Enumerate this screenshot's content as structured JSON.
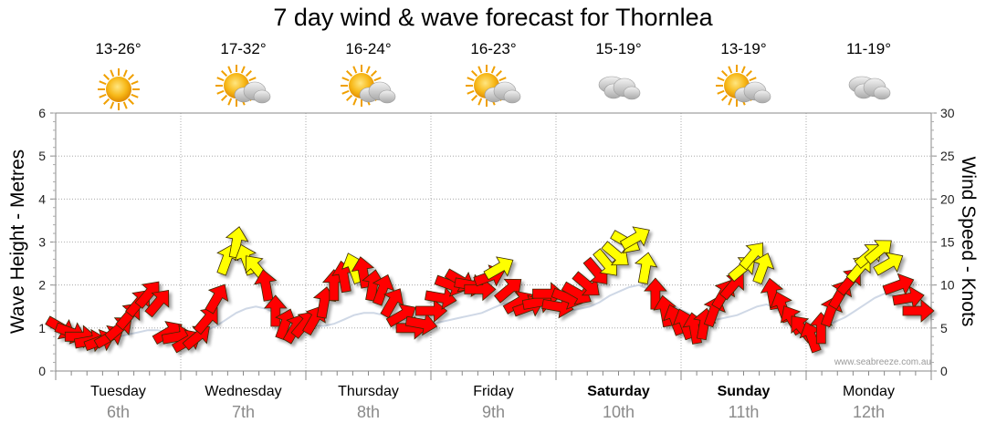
{
  "title": "7 day wind & wave forecast for Thornlea",
  "credit": "www.seabreeze.com.au",
  "days": [
    {
      "name": "Tuesday",
      "date": "6th",
      "temp": "13-26°",
      "icon": "sun-icon",
      "weekend": false
    },
    {
      "name": "Wednesday",
      "date": "7th",
      "temp": "17-32°",
      "icon": "sun-cloud-icon",
      "weekend": false
    },
    {
      "name": "Thursday",
      "date": "8th",
      "temp": "16-24°",
      "icon": "sun-cloud-icon",
      "weekend": false
    },
    {
      "name": "Friday",
      "date": "9th",
      "temp": "16-23°",
      "icon": "sun-cloud-icon",
      "weekend": false
    },
    {
      "name": "Saturday",
      "date": "10th",
      "temp": "15-19°",
      "icon": "cloud-icon",
      "weekend": true
    },
    {
      "name": "Sunday",
      "date": "11th",
      "temp": "13-19°",
      "icon": "sun-cloud-icon",
      "weekend": true
    },
    {
      "name": "Monday",
      "date": "12th",
      "temp": "11-19°",
      "icon": "cloud-icon",
      "weekend": false
    }
  ],
  "chart_data": {
    "type": "line",
    "ylabel_left": "Wave Height - Metres",
    "ylabel_right": "Wind Speed - Knots",
    "ylim_left": [
      0,
      6
    ],
    "ylim_right": [
      0,
      30
    ],
    "yticks_left": [
      "0",
      "1",
      "2",
      "3",
      "4",
      "5",
      "6"
    ],
    "yticks_right": [
      "0",
      "5",
      "10",
      "15",
      "20",
      "25",
      "30"
    ],
    "grid": true,
    "arrow_colors": {
      "light": "#ffff00",
      "strong": "#ff0000"
    },
    "wind_knots": [
      5,
      4.5,
      4,
      3.5,
      3.5,
      4,
      5,
      6.5,
      8,
      9,
      8,
      4.5,
      4,
      3.5,
      4,
      6,
      8.5,
      13,
      15,
      13,
      12,
      10,
      7,
      5.5,
      5,
      5.5,
      6,
      8,
      10,
      11,
      12,
      11.5,
      10,
      9.5,
      8,
      6.5,
      5,
      5.5,
      7,
      8.5,
      10,
      10.5,
      10,
      9.5,
      11,
      12,
      9.5,
      8,
      7.5,
      8,
      9,
      7.5,
      8.5,
      9,
      10,
      11.5,
      12.5,
      13.5,
      15,
      15.5,
      12,
      9,
      7,
      6,
      5.5,
      5,
      5.5,
      7,
      9,
      10,
      12,
      13.5,
      12,
      9,
      7.5,
      6,
      5,
      4,
      5,
      7,
      9,
      10.5,
      12,
      13.5,
      14,
      12.5,
      10,
      8.5,
      7
    ],
    "wind_dir_deg": [
      120,
      110,
      90,
      80,
      70,
      60,
      50,
      40,
      40,
      40,
      40,
      60,
      80,
      60,
      50,
      40,
      30,
      20,
      10,
      -20,
      -40,
      -10,
      0,
      20,
      30,
      40,
      30,
      10,
      0,
      -10,
      -20,
      -10,
      10,
      20,
      30,
      60,
      90,
      100,
      90,
      100,
      110,
      120,
      100,
      90,
      70,
      60,
      50,
      60,
      70,
      80,
      90,
      100,
      110,
      120,
      130,
      140,
      140,
      130,
      120,
      60,
      10,
      0,
      -10,
      -20,
      -20,
      -10,
      10,
      20,
      30,
      40,
      50,
      40,
      20,
      -10,
      -20,
      -30,
      -40,
      -20,
      0,
      20,
      30,
      40,
      40,
      50,
      50,
      60,
      70,
      80,
      90
    ],
    "wave_m": [
      1.0,
      0.95,
      0.9,
      0.85,
      0.8,
      0.8,
      0.8,
      0.85,
      0.9,
      0.95,
      0.95,
      0.9,
      0.85,
      0.85,
      0.9,
      0.95,
      1.05,
      1.2,
      1.35,
      1.45,
      1.5,
      1.45,
      1.35,
      1.25,
      1.15,
      1.1,
      1.05,
      1.05,
      1.1,
      1.2,
      1.3,
      1.35,
      1.35,
      1.3,
      1.25,
      1.2,
      1.15,
      1.1,
      1.1,
      1.15,
      1.2,
      1.25,
      1.3,
      1.35,
      1.45,
      1.55,
      1.6,
      1.6,
      1.55,
      1.5,
      1.5,
      1.45,
      1.4,
      1.45,
      1.5,
      1.6,
      1.75,
      1.85,
      1.95,
      2.0,
      1.9,
      1.75,
      1.6,
      1.45,
      1.35,
      1.25,
      1.2,
      1.2,
      1.25,
      1.3,
      1.4,
      1.5,
      1.55,
      1.45,
      1.3,
      1.2,
      1.1,
      1.0,
      1.05,
      1.15,
      1.25,
      1.4,
      1.55,
      1.7,
      1.8,
      1.75,
      1.6,
      1.45,
      1.3
    ]
  }
}
